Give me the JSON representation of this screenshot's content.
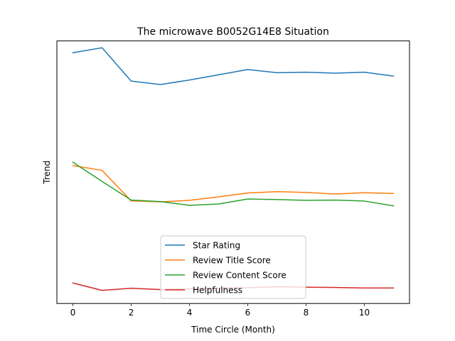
{
  "chart_data": {
    "type": "line",
    "title": "The microwave B0052G14E8 Situation",
    "xlabel": "Time Circle (Month)",
    "ylabel": "Trend",
    "xlim": [
      -0.55,
      11.55
    ],
    "ylim": [
      0,
      1
    ],
    "x": [
      0,
      1,
      2,
      3,
      4,
      5,
      6,
      7,
      8,
      9,
      10,
      11
    ],
    "x_ticks": [
      "0",
      "2",
      "4",
      "6",
      "8",
      "10"
    ],
    "x_tick_values": [
      0,
      2,
      4,
      6,
      8,
      10
    ],
    "y_ticks_shown": false,
    "grid": false,
    "legend_position": "lower center",
    "series": [
      {
        "name": "Star Rating",
        "color": "#1f77b4",
        "values": [
          0.955,
          0.974,
          0.847,
          0.834,
          0.851,
          0.871,
          0.891,
          0.879,
          0.881,
          0.877,
          0.881,
          0.866
        ]
      },
      {
        "name": "Review Title Score",
        "color": "#ff7f0e",
        "values": [
          0.525,
          0.507,
          0.391,
          0.387,
          0.393,
          0.406,
          0.421,
          0.426,
          0.423,
          0.417,
          0.422,
          0.419
        ]
      },
      {
        "name": "Review Content Score",
        "color": "#2ca02c",
        "values": [
          0.538,
          0.465,
          0.394,
          0.388,
          0.374,
          0.379,
          0.398,
          0.396,
          0.393,
          0.394,
          0.39,
          0.372
        ]
      },
      {
        "name": "Helpfulness",
        "color": "#d62728",
        "values": [
          0.078,
          0.05,
          0.058,
          0.053,
          0.056,
          0.058,
          0.06,
          0.064,
          0.062,
          0.061,
          0.059,
          0.059
        ]
      }
    ]
  }
}
